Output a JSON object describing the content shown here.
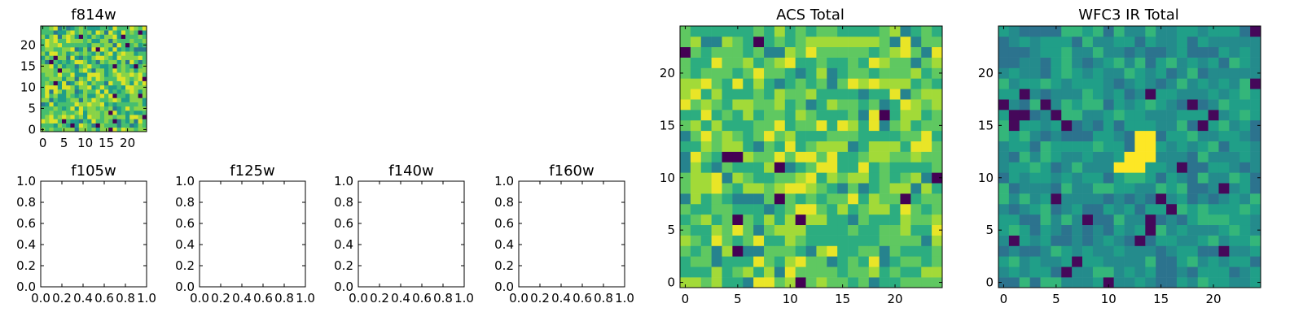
{
  "chart_data": [
    {
      "id": "f814w",
      "type": "heatmap",
      "title": "f814w",
      "grid_size": 25,
      "colormap": "viridis",
      "value_range": [
        0,
        1
      ],
      "x_ticks": [
        "0",
        "5",
        "10",
        "15",
        "20"
      ],
      "y_ticks": [
        "0",
        "5",
        "10",
        "15",
        "20"
      ],
      "values": "random-noise 25x25"
    },
    {
      "id": "f105w",
      "type": "empty",
      "title": "f105w",
      "xlim": [
        0,
        1
      ],
      "ylim": [
        0,
        1
      ],
      "x_ticks": [
        "0.0",
        "0.2",
        "0.4",
        "0.6",
        "0.8",
        "1.0"
      ],
      "y_ticks": [
        "0.0",
        "0.2",
        "0.4",
        "0.6",
        "0.8",
        "1.0"
      ]
    },
    {
      "id": "f125w",
      "type": "empty",
      "title": "f125w",
      "xlim": [
        0,
        1
      ],
      "ylim": [
        0,
        1
      ],
      "x_ticks": [
        "0.0",
        "0.2",
        "0.4",
        "0.6",
        "0.8",
        "1.0"
      ],
      "y_ticks": [
        "0.0",
        "0.2",
        "0.4",
        "0.6",
        "0.8",
        "1.0"
      ]
    },
    {
      "id": "f140w",
      "type": "empty",
      "title": "f140w",
      "xlim": [
        0,
        1
      ],
      "ylim": [
        0,
        1
      ],
      "x_ticks": [
        "0.0",
        "0.2",
        "0.4",
        "0.6",
        "0.8",
        "1.0"
      ],
      "y_ticks": [
        "0.0",
        "0.2",
        "0.4",
        "0.6",
        "0.8",
        "1.0"
      ]
    },
    {
      "id": "f160w",
      "type": "empty",
      "title": "f160w",
      "xlim": [
        0,
        1
      ],
      "ylim": [
        0,
        1
      ],
      "x_ticks": [
        "0.0",
        "0.2",
        "0.4",
        "0.6",
        "0.8",
        "1.0"
      ],
      "y_ticks": [
        "0.0",
        "0.2",
        "0.4",
        "0.6",
        "0.8",
        "1.0"
      ]
    },
    {
      "id": "acs_total",
      "type": "heatmap",
      "title": "ACS Total",
      "grid_size": 25,
      "colormap": "viridis",
      "value_range": [
        0,
        1
      ],
      "x_ticks": [
        "0",
        "5",
        "10",
        "15",
        "20"
      ],
      "y_ticks": [
        "0",
        "5",
        "10",
        "15",
        "20"
      ],
      "values": "random-noise 25x25"
    },
    {
      "id": "wfc3_ir_total",
      "type": "heatmap",
      "title": "WFC3 IR Total",
      "grid_size": 25,
      "colormap": "viridis",
      "value_range": [
        0,
        1
      ],
      "x_ticks": [
        "0",
        "5",
        "10",
        "15",
        "20"
      ],
      "y_ticks": [
        "0",
        "5",
        "10",
        "15",
        "20"
      ],
      "values": "random-noise 25x25 with bright source near x=11-14, y=11-14",
      "bright_source": [
        [
          11,
          11
        ],
        [
          12,
          11
        ],
        [
          13,
          11
        ],
        [
          12,
          12
        ],
        [
          13,
          12
        ],
        [
          14,
          12
        ],
        [
          13,
          13
        ],
        [
          14,
          13
        ],
        [
          13,
          14
        ],
        [
          14,
          14
        ]
      ]
    }
  ],
  "colors": {
    "viridis_low": "#440154",
    "viridis_mid": "#21918c",
    "viridis_high": "#fde725"
  }
}
